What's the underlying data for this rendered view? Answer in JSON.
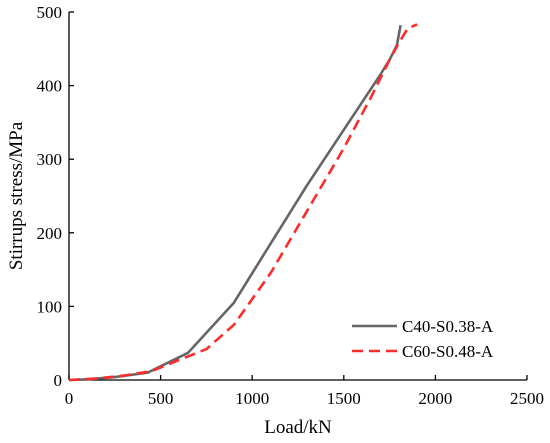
{
  "chart_data": {
    "type": "line",
    "xlabel": "Load/kN",
    "ylabel": "Stirrups stress/MPa",
    "xlim": [
      0,
      2500
    ],
    "ylim": [
      0,
      500
    ],
    "xticks": [
      0,
      500,
      1000,
      1500,
      2000,
      2500
    ],
    "yticks": [
      0,
      100,
      200,
      300,
      400,
      500
    ],
    "grid": false,
    "legend_position": "bottom-right",
    "series": [
      {
        "name": "C40-S0.38-A",
        "color": "#666666",
        "dash": "solid",
        "points": [
          [
            0,
            0
          ],
          [
            100,
            1
          ],
          [
            250,
            4
          ],
          [
            430,
            10
          ],
          [
            650,
            37
          ],
          [
            900,
            105
          ],
          [
            1100,
            185
          ],
          [
            1300,
            265
          ],
          [
            1500,
            340
          ],
          [
            1700,
            415
          ],
          [
            1750,
            435
          ],
          [
            1790,
            455
          ],
          [
            1810,
            482
          ]
        ]
      },
      {
        "name": "C60-S0.48-A",
        "color": "#ff2a2a",
        "dash": "dashed",
        "points": [
          [
            0,
            0
          ],
          [
            150,
            2
          ],
          [
            300,
            6
          ],
          [
            450,
            12
          ],
          [
            600,
            27
          ],
          [
            750,
            42
          ],
          [
            900,
            75
          ],
          [
            1100,
            145
          ],
          [
            1300,
            230
          ],
          [
            1500,
            315
          ],
          [
            1650,
            385
          ],
          [
            1750,
            435
          ],
          [
            1800,
            458
          ],
          [
            1850,
            478
          ],
          [
            1900,
            483
          ]
        ]
      }
    ]
  }
}
